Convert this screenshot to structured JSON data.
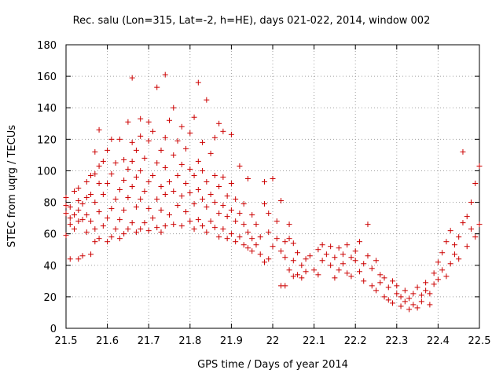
{
  "chart_data": {
    "type": "scatter",
    "title": "Rec. salu (Lon=315, Lat=-2, h=HE), days 021-022, 2014, window 002",
    "xlabel": "GPS time / Days of year 2014",
    "ylabel": "STEC from uqrg / TECUs",
    "xlim": [
      21.5,
      22.5
    ],
    "ylim": [
      0,
      180
    ],
    "grid": true,
    "marker": "plus",
    "color": "#cc0000",
    "xticks": [
      21.5,
      21.6,
      21.7,
      21.8,
      21.9,
      22.0,
      22.1,
      22.2,
      22.3,
      22.4,
      22.5
    ],
    "xtick_labels": [
      "21.5",
      "21.6",
      "21.7",
      "21.8",
      "21.9",
      "22",
      "22.1",
      "22.2",
      "22.3",
      "22.4",
      "22.5"
    ],
    "yticks": [
      0,
      20,
      40,
      60,
      80,
      100,
      120,
      140,
      160,
      180
    ],
    "ytick_labels": [
      "0",
      "20",
      "40",
      "60",
      "80",
      "100",
      "120",
      "140",
      "160",
      "180"
    ],
    "series": [
      {
        "name": "STEC",
        "points": [
          [
            21.5,
            59
          ],
          [
            21.5,
            73
          ],
          [
            21.5,
            78
          ],
          [
            21.5,
            83
          ],
          [
            21.51,
            44
          ],
          [
            21.51,
            66
          ],
          [
            21.51,
            70
          ],
          [
            21.51,
            77
          ],
          [
            21.52,
            63
          ],
          [
            21.52,
            72
          ],
          [
            21.52,
            87
          ],
          [
            21.53,
            44
          ],
          [
            21.53,
            68
          ],
          [
            21.53,
            75
          ],
          [
            21.53,
            81
          ],
          [
            21.53,
            89
          ],
          [
            21.54,
            46
          ],
          [
            21.54,
            69
          ],
          [
            21.54,
            79
          ],
          [
            21.55,
            61
          ],
          [
            21.55,
            72
          ],
          [
            21.55,
            83
          ],
          [
            21.55,
            93
          ],
          [
            21.56,
            47
          ],
          [
            21.56,
            68
          ],
          [
            21.56,
            85
          ],
          [
            21.56,
            97
          ],
          [
            21.57,
            55
          ],
          [
            21.57,
            63
          ],
          [
            21.57,
            80
          ],
          [
            21.57,
            98
          ],
          [
            21.57,
            112
          ],
          [
            21.58,
            57
          ],
          [
            21.58,
            74
          ],
          [
            21.58,
            92
          ],
          [
            21.58,
            103
          ],
          [
            21.58,
            126
          ],
          [
            21.59,
            65
          ],
          [
            21.59,
            85
          ],
          [
            21.59,
            106
          ],
          [
            21.6,
            55
          ],
          [
            21.6,
            70
          ],
          [
            21.6,
            92
          ],
          [
            21.6,
            113
          ],
          [
            21.61,
            58
          ],
          [
            21.61,
            76
          ],
          [
            21.61,
            98
          ],
          [
            21.61,
            120
          ],
          [
            21.62,
            63
          ],
          [
            21.62,
            82
          ],
          [
            21.62,
            105
          ],
          [
            21.63,
            57
          ],
          [
            21.63,
            69
          ],
          [
            21.63,
            88
          ],
          [
            21.63,
            120
          ],
          [
            21.64,
            60
          ],
          [
            21.64,
            75
          ],
          [
            21.64,
            94
          ],
          [
            21.64,
            107
          ],
          [
            21.65,
            63
          ],
          [
            21.65,
            83
          ],
          [
            21.65,
            101
          ],
          [
            21.65,
            131
          ],
          [
            21.66,
            67
          ],
          [
            21.66,
            90
          ],
          [
            21.66,
            106
          ],
          [
            21.66,
            118
          ],
          [
            21.66,
            159
          ],
          [
            21.67,
            61
          ],
          [
            21.67,
            77
          ],
          [
            21.67,
            96
          ],
          [
            21.67,
            113
          ],
          [
            21.68,
            63
          ],
          [
            21.68,
            82
          ],
          [
            21.68,
            100
          ],
          [
            21.68,
            122
          ],
          [
            21.68,
            133
          ],
          [
            21.69,
            67
          ],
          [
            21.69,
            87
          ],
          [
            21.69,
            108
          ],
          [
            21.7,
            62
          ],
          [
            21.7,
            76
          ],
          [
            21.7,
            93
          ],
          [
            21.7,
            119
          ],
          [
            21.7,
            131
          ],
          [
            21.71,
            70
          ],
          [
            21.71,
            97
          ],
          [
            21.71,
            125
          ],
          [
            21.72,
            64
          ],
          [
            21.72,
            82
          ],
          [
            21.72,
            105
          ],
          [
            21.72,
            153
          ],
          [
            21.73,
            61
          ],
          [
            21.73,
            75
          ],
          [
            21.73,
            90
          ],
          [
            21.73,
            113
          ],
          [
            21.74,
            65
          ],
          [
            21.74,
            85
          ],
          [
            21.74,
            102
          ],
          [
            21.74,
            121
          ],
          [
            21.74,
            161
          ],
          [
            21.75,
            72
          ],
          [
            21.75,
            93
          ],
          [
            21.75,
            132
          ],
          [
            21.76,
            66
          ],
          [
            21.76,
            87
          ],
          [
            21.76,
            110
          ],
          [
            21.76,
            140
          ],
          [
            21.77,
            78
          ],
          [
            21.77,
            97
          ],
          [
            21.77,
            119
          ],
          [
            21.78,
            65
          ],
          [
            21.78,
            84
          ],
          [
            21.78,
            104
          ],
          [
            21.78,
            128
          ],
          [
            21.79,
            74
          ],
          [
            21.79,
            92
          ],
          [
            21.79,
            114
          ],
          [
            21.8,
            68
          ],
          [
            21.8,
            86
          ],
          [
            21.8,
            101
          ],
          [
            21.8,
            124
          ],
          [
            21.81,
            63
          ],
          [
            21.81,
            79
          ],
          [
            21.81,
            97
          ],
          [
            21.81,
            134
          ],
          [
            21.82,
            69
          ],
          [
            21.82,
            88
          ],
          [
            21.82,
            106
          ],
          [
            21.82,
            156
          ],
          [
            21.83,
            65
          ],
          [
            21.83,
            82
          ],
          [
            21.83,
            100
          ],
          [
            21.83,
            118
          ],
          [
            21.84,
            61
          ],
          [
            21.84,
            77
          ],
          [
            21.84,
            93
          ],
          [
            21.84,
            145
          ],
          [
            21.85,
            68
          ],
          [
            21.85,
            85
          ],
          [
            21.85,
            111
          ],
          [
            21.86,
            64
          ],
          [
            21.86,
            80
          ],
          [
            21.86,
            97
          ],
          [
            21.86,
            121
          ],
          [
            21.87,
            58
          ],
          [
            21.87,
            73
          ],
          [
            21.87,
            90
          ],
          [
            21.87,
            130
          ],
          [
            21.88,
            63
          ],
          [
            21.88,
            78
          ],
          [
            21.88,
            96
          ],
          [
            21.88,
            125
          ],
          [
            21.89,
            57
          ],
          [
            21.89,
            71
          ],
          [
            21.89,
            84
          ],
          [
            21.9,
            60
          ],
          [
            21.9,
            75
          ],
          [
            21.9,
            92
          ],
          [
            21.9,
            123
          ],
          [
            21.91,
            55
          ],
          [
            21.91,
            68
          ],
          [
            21.91,
            82
          ],
          [
            21.92,
            58
          ],
          [
            21.92,
            73
          ],
          [
            21.92,
            103
          ],
          [
            21.93,
            53
          ],
          [
            21.93,
            66
          ],
          [
            21.93,
            79
          ],
          [
            21.94,
            51
          ],
          [
            21.94,
            61
          ],
          [
            21.94,
            95
          ],
          [
            21.95,
            49
          ],
          [
            21.95,
            57
          ],
          [
            21.95,
            72
          ],
          [
            21.96,
            53
          ],
          [
            21.96,
            66
          ],
          [
            21.97,
            47
          ],
          [
            21.97,
            58
          ],
          [
            21.98,
            42
          ],
          [
            21.98,
            79
          ],
          [
            21.98,
            93
          ],
          [
            21.99,
            44
          ],
          [
            21.99,
            61
          ],
          [
            21.99,
            73
          ],
          [
            22.0,
            52
          ],
          [
            22.0,
            95
          ],
          [
            22.01,
            57
          ],
          [
            22.01,
            68
          ],
          [
            22.02,
            27
          ],
          [
            22.02,
            49
          ],
          [
            22.02,
            81
          ],
          [
            22.03,
            27
          ],
          [
            22.03,
            45
          ],
          [
            22.03,
            55
          ],
          [
            22.04,
            37
          ],
          [
            22.04,
            57
          ],
          [
            22.04,
            66
          ],
          [
            22.05,
            33
          ],
          [
            22.05,
            43
          ],
          [
            22.05,
            54
          ],
          [
            22.06,
            34
          ],
          [
            22.06,
            48
          ],
          [
            22.07,
            32
          ],
          [
            22.07,
            40
          ],
          [
            22.08,
            36
          ],
          [
            22.08,
            44
          ],
          [
            22.09,
            46
          ],
          [
            22.1,
            37
          ],
          [
            22.11,
            34
          ],
          [
            22.11,
            50
          ],
          [
            22.12,
            43
          ],
          [
            22.12,
            53
          ],
          [
            22.13,
            47
          ],
          [
            22.14,
            52
          ],
          [
            22.14,
            40
          ],
          [
            22.15,
            45
          ],
          [
            22.15,
            32
          ],
          [
            22.16,
            51
          ],
          [
            22.16,
            37
          ],
          [
            22.17,
            47
          ],
          [
            22.17,
            41
          ],
          [
            22.18,
            53
          ],
          [
            22.18,
            35
          ],
          [
            22.19,
            45
          ],
          [
            22.19,
            33
          ],
          [
            22.2,
            43
          ],
          [
            22.2,
            49
          ],
          [
            22.21,
            36
          ],
          [
            22.21,
            55
          ],
          [
            22.22,
            41
          ],
          [
            22.22,
            30
          ],
          [
            22.23,
            46
          ],
          [
            22.23,
            66
          ],
          [
            22.24,
            27
          ],
          [
            22.24,
            38
          ],
          [
            22.25,
            43
          ],
          [
            22.25,
            24
          ],
          [
            22.26,
            34
          ],
          [
            22.26,
            29
          ],
          [
            22.27,
            20
          ],
          [
            22.27,
            32
          ],
          [
            22.28,
            18
          ],
          [
            22.28,
            26
          ],
          [
            22.29,
            30
          ],
          [
            22.29,
            16
          ],
          [
            22.3,
            22
          ],
          [
            22.3,
            27
          ],
          [
            22.31,
            14
          ],
          [
            22.31,
            20
          ],
          [
            22.32,
            17
          ],
          [
            22.32,
            24
          ],
          [
            22.33,
            12
          ],
          [
            22.33,
            19
          ],
          [
            22.34,
            22
          ],
          [
            22.34,
            15
          ],
          [
            22.35,
            26
          ],
          [
            22.35,
            13
          ],
          [
            22.36,
            21
          ],
          [
            22.36,
            17
          ],
          [
            22.37,
            24
          ],
          [
            22.37,
            29
          ],
          [
            22.38,
            15
          ],
          [
            22.38,
            22
          ],
          [
            22.39,
            28
          ],
          [
            22.39,
            35
          ],
          [
            22.4,
            31
          ],
          [
            22.4,
            42
          ],
          [
            22.41,
            37
          ],
          [
            22.41,
            48
          ],
          [
            22.42,
            33
          ],
          [
            22.42,
            55
          ],
          [
            22.43,
            41
          ],
          [
            22.43,
            62
          ],
          [
            22.44,
            47
          ],
          [
            22.44,
            53
          ],
          [
            22.45,
            58
          ],
          [
            22.45,
            44
          ],
          [
            22.46,
            67
          ],
          [
            22.46,
            112
          ],
          [
            22.47,
            52
          ],
          [
            22.47,
            71
          ],
          [
            22.48,
            63
          ],
          [
            22.48,
            80
          ],
          [
            22.49,
            58
          ],
          [
            22.49,
            92
          ],
          [
            22.5,
            66
          ],
          [
            22.5,
            103
          ]
        ]
      }
    ]
  }
}
